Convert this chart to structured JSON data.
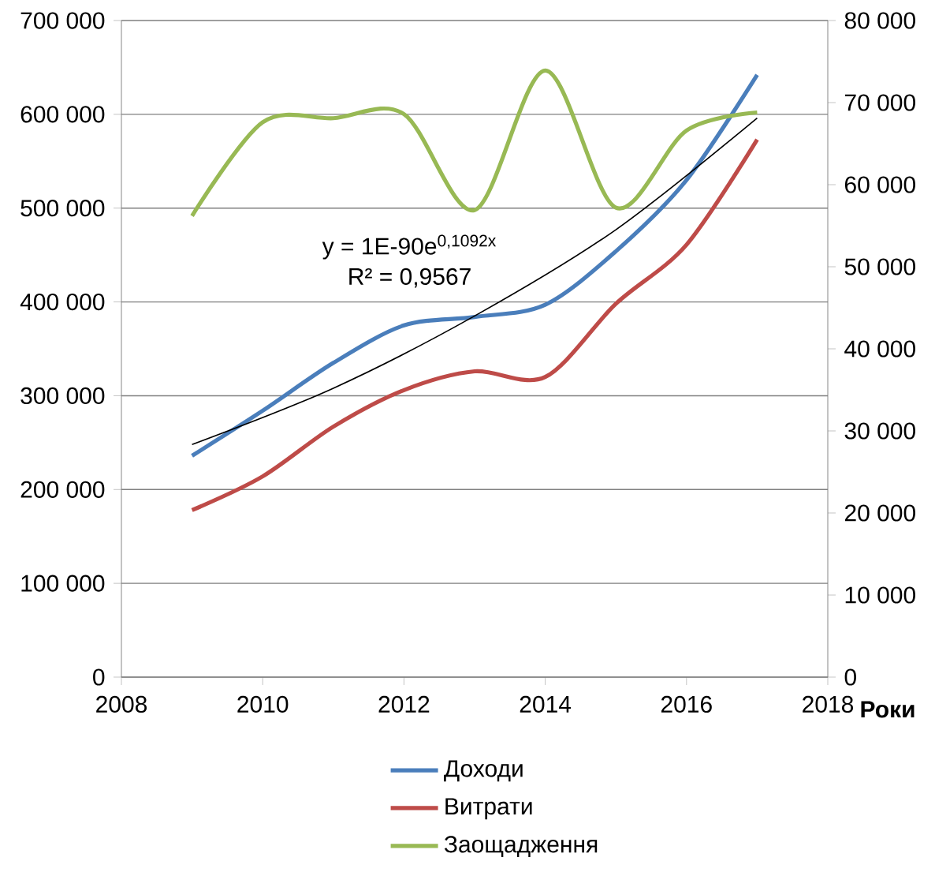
{
  "chart_data": {
    "type": "line",
    "x": [
      2009,
      2010,
      2011,
      2012,
      2013,
      2014,
      2015,
      2016,
      2017
    ],
    "series": [
      {
        "name": "Доходи",
        "color": "#4a7ebb",
        "values": [
          236000,
          284000,
          335000,
          375000,
          384000,
          397000,
          454000,
          530000,
          642000
        ]
      },
      {
        "name": "Витрати",
        "color": "#be4b48",
        "values": [
          178000,
          214000,
          267000,
          306000,
          326000,
          320000,
          398000,
          461000,
          573000
        ]
      },
      {
        "name": "Заощадження",
        "color": "#98b954",
        "axis": "y2",
        "values": [
          56200,
          67600,
          68100,
          68600,
          56900,
          73900,
          57200,
          66600,
          68800
        ]
      },
      {
        "type": "line",
        "color": "#000000",
        "x": [
          2009,
          2011,
          2013,
          2015,
          2017
        ],
        "values": [
          248000,
          308000,
          385000,
          477000,
          596000
        ]
      }
    ],
    "xlabel": "Роки",
    "xlim": [
      2008,
      2018
    ],
    "xticks": [
      2008,
      2010,
      2012,
      2014,
      2016,
      2018
    ],
    "ylim": [
      0,
      700000
    ],
    "yticks": [
      {
        "value": 0,
        "label": "0"
      },
      {
        "value": 100000,
        "label": "100 000"
      },
      {
        "value": 200000,
        "label": "200 000"
      },
      {
        "value": 300000,
        "label": "300 000"
      },
      {
        "value": 400000,
        "label": "400 000"
      },
      {
        "value": 500000,
        "label": "500 000"
      },
      {
        "value": 600000,
        "label": "600 000"
      },
      {
        "value": 700000,
        "label": "700 000"
      }
    ],
    "y2lim": [
      0,
      80000
    ],
    "y2ticks": [
      {
        "value": 0,
        "label": "0"
      },
      {
        "value": 10000,
        "label": "10 000"
      },
      {
        "value": 20000,
        "label": "20 000"
      },
      {
        "value": 30000,
        "label": "30 000"
      },
      {
        "value": 40000,
        "label": "40 000"
      },
      {
        "value": 50000,
        "label": "50 000"
      },
      {
        "value": 60000,
        "label": "60 000"
      },
      {
        "value": 70000,
        "label": "70 000"
      },
      {
        "value": 80000,
        "label": "80 000"
      }
    ],
    "annotations": [
      "y = 1E-90e$^{0,1092x}$",
      "R² = 0,9567"
    ],
    "grid": "y",
    "legend": "bottom",
    "marker": "none"
  }
}
